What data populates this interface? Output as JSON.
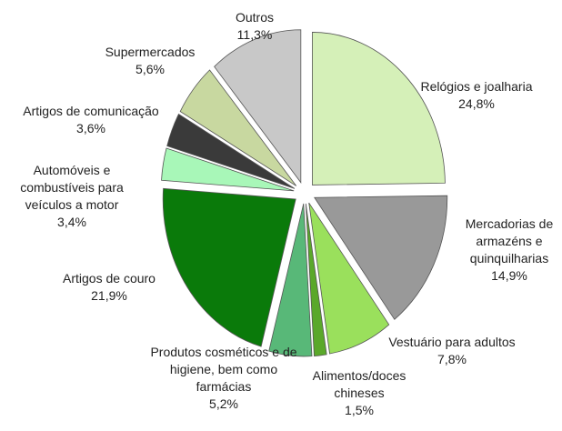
{
  "chart_data": {
    "type": "pie",
    "categories": [
      "Relógios e joalharia",
      "Mercadorias de armazéns e quinquilharias",
      "Vestuário para adultos",
      "Alimentos/doces chineses",
      "Produtos cosméticos e de higiene, bem como farmácias",
      "Artigos de couro",
      "Automóveis e combustíveis para veículos a motor",
      "Artigos de comunicação",
      "Supermercados",
      "Outros"
    ],
    "values": [
      24.8,
      14.9,
      7.8,
      1.5,
      5.2,
      21.9,
      3.4,
      3.6,
      5.6,
      11.3
    ],
    "value_labels": [
      "24,8%",
      "14,9%",
      "7,8%",
      "1,5%",
      "5,2%",
      "21,9%",
      "3,4%",
      "3,6%",
      "5,6%",
      "11,3%"
    ],
    "colors": [
      "#d5f0b8",
      "#999999",
      "#9ae05c",
      "#5aa82a",
      "#58b878",
      "#0a7a0a",
      "#a8f7b8",
      "#3a3a3a",
      "#c8d8a0",
      "#c8c8c8"
    ]
  }
}
